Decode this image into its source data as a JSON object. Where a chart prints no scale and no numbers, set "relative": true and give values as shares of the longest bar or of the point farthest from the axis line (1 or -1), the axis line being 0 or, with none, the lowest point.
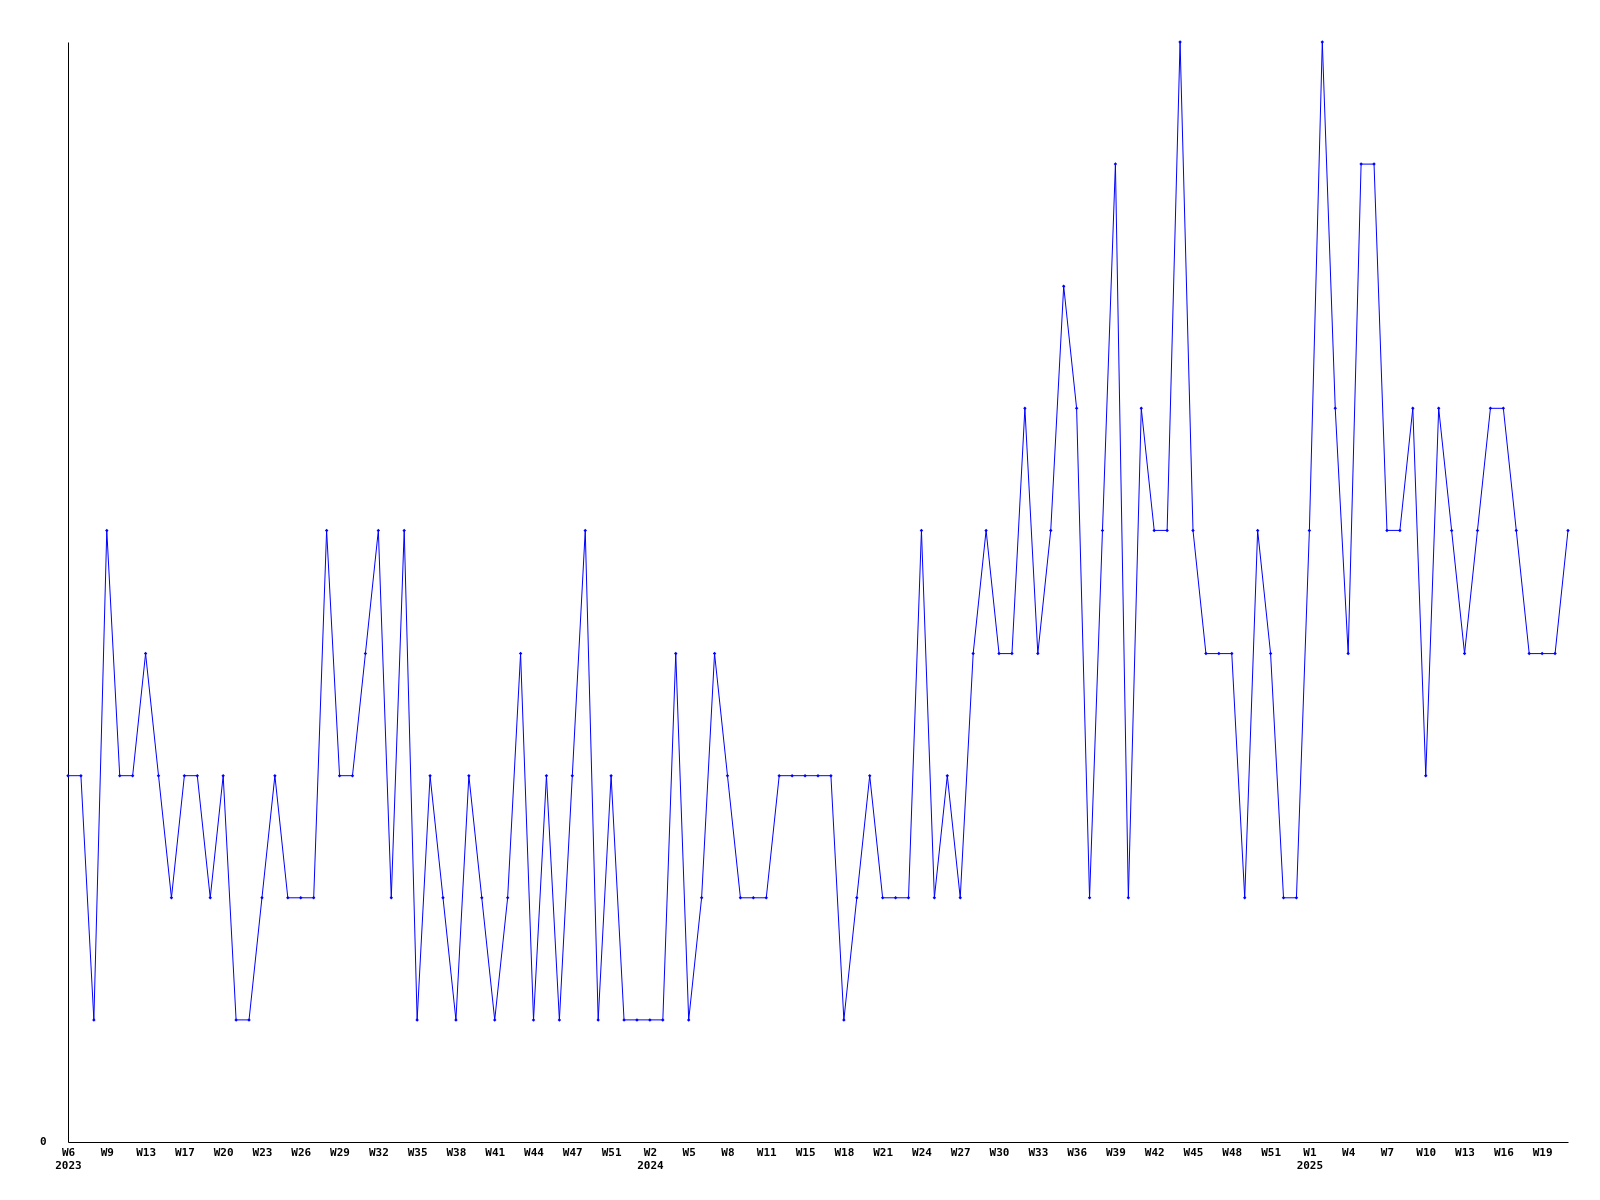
{
  "chart_data": {
    "type": "line",
    "relative": true,
    "marker": "diamond",
    "grid": false,
    "annotations": [
      "0"
    ],
    "categories": [
      "W6\n2023",
      null,
      null,
      "W9",
      null,
      null,
      "W13",
      null,
      null,
      "W17",
      null,
      null,
      "W20",
      null,
      null,
      "W23",
      null,
      null,
      "W26",
      null,
      null,
      "W29",
      null,
      null,
      "W32",
      null,
      null,
      "W35",
      null,
      null,
      "W38",
      null,
      null,
      "W41",
      null,
      null,
      "W44",
      null,
      null,
      "W47",
      null,
      null,
      "W51",
      null,
      null,
      "W2\n2024",
      null,
      null,
      "W5",
      null,
      null,
      "W8",
      null,
      null,
      "W11",
      null,
      null,
      "W15",
      null,
      null,
      "W18",
      null,
      null,
      "W21",
      null,
      null,
      "W24",
      null,
      null,
      "W27",
      null,
      null,
      "W30",
      null,
      null,
      "W33",
      null,
      null,
      "W36",
      null,
      null,
      "W39",
      null,
      null,
      "W42",
      null,
      null,
      "W45",
      null,
      null,
      "W48",
      null,
      null,
      "W51",
      null,
      null,
      "W1\n2025",
      null,
      null,
      "W4",
      null,
      null,
      "W7",
      null,
      null,
      "W10",
      null,
      null,
      "W13",
      null,
      null,
      "W16",
      null,
      null,
      "W19",
      null,
      null
    ],
    "series": [
      {
        "color": "#0000ff",
        "values": [
          0.333,
          0.333,
          0.111,
          0.556,
          0.333,
          0.333,
          0.444,
          0.333,
          0.222,
          0.333,
          0.333,
          0.222,
          0.333,
          0.111,
          0.111,
          0.222,
          0.333,
          0.222,
          0.222,
          0.222,
          0.556,
          0.333,
          0.333,
          0.444,
          0.556,
          0.222,
          0.556,
          0.111,
          0.333,
          0.222,
          0.111,
          0.333,
          0.222,
          0.111,
          0.222,
          0.444,
          0.111,
          0.333,
          0.111,
          0.333,
          0.556,
          0.111,
          0.333,
          0.111,
          0.111,
          0.111,
          0.111,
          0.444,
          0.111,
          0.222,
          0.444,
          0.333,
          0.222,
          0.222,
          0.222,
          0.333,
          0.333,
          0.333,
          0.333,
          0.333,
          0.111,
          0.222,
          0.333,
          0.222,
          0.222,
          0.222,
          0.556,
          0.222,
          0.333,
          0.222,
          0.444,
          0.556,
          0.444,
          0.444,
          0.667,
          0.444,
          0.556,
          0.778,
          0.667,
          0.222,
          0.556,
          0.889,
          0.222,
          0.667,
          0.556,
          0.556,
          1,
          0.556,
          0.444,
          0.444,
          0.444,
          0.222,
          0.556,
          0.444,
          0.222,
          0.222,
          0.556,
          1,
          0.667,
          0.444,
          0.889,
          0.889,
          0.556,
          0.556,
          0.667,
          0.333,
          0.667,
          0.556,
          0.444,
          0.556,
          0.667,
          0.667,
          0.556,
          0.444,
          0.444,
          0.444,
          0.556
        ]
      }
    ]
  }
}
